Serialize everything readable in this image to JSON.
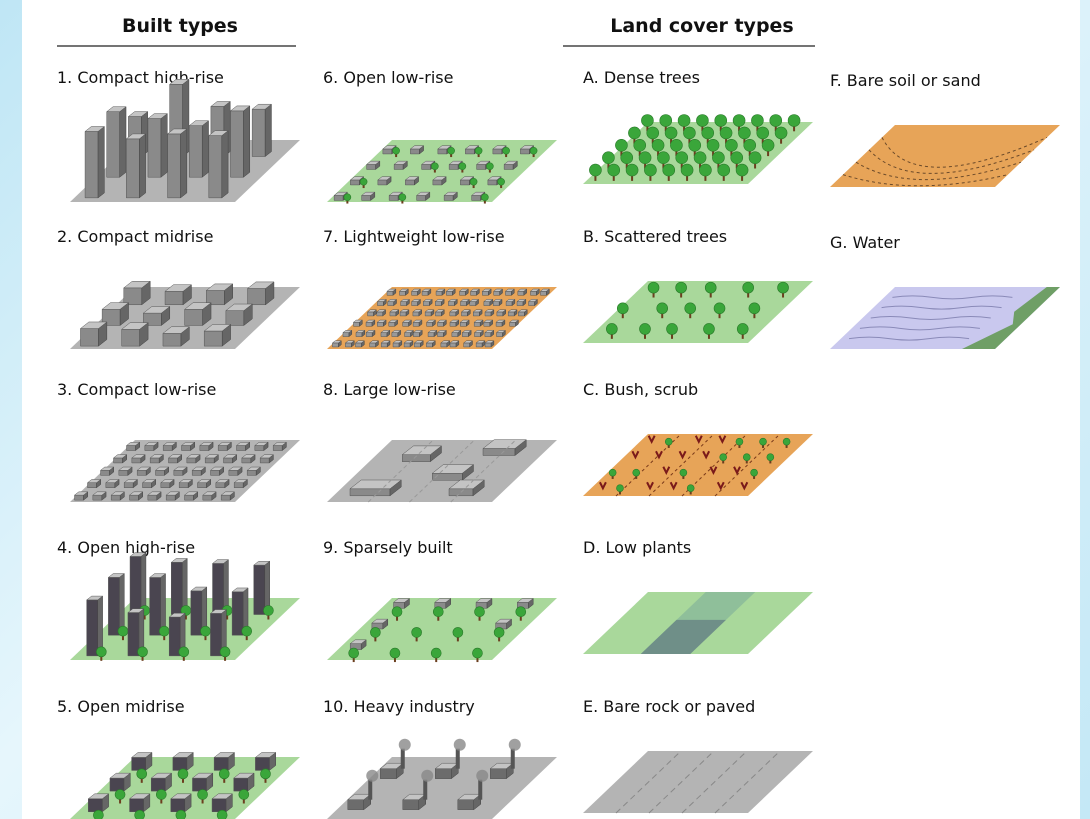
{
  "header": {
    "built_title": "Built types",
    "land_title": "Land cover types"
  },
  "built_types": [
    "1. Compact high-rise",
    "2. Compact midrise",
    "3. Compact low-rise",
    "4. Open high-rise",
    "5. Open midrise",
    "6. Open low-rise",
    "7. Lightweight low-rise",
    "8. Large low-rise",
    "9. Sparsely built",
    "10. Heavy industry"
  ],
  "land_cover_types": [
    "A. Dense trees",
    "B. Scattered trees",
    "C. Bush, scrub",
    "D. Low plants",
    "E. Bare rock or paved",
    "F. Bare soil or sand",
    "G. Water"
  ]
}
